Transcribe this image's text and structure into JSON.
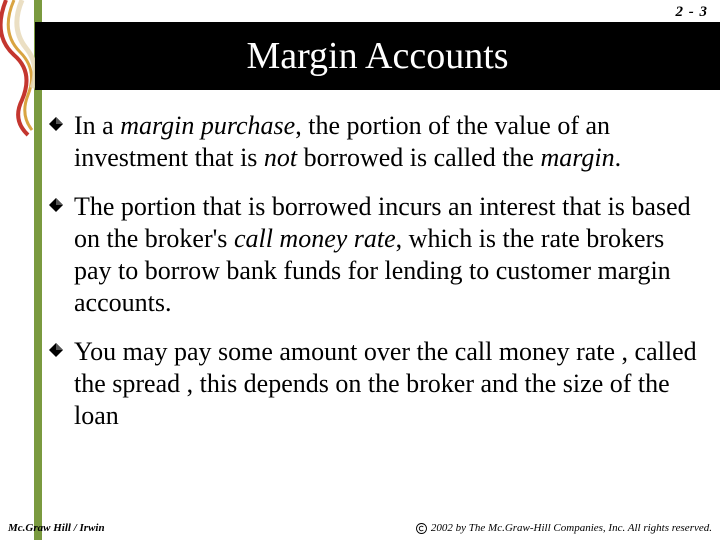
{
  "page_number": "2 - 3",
  "title": "Margin Accounts",
  "decoration": {
    "bar_color": "#7a9a3f",
    "swirl_colors": [
      "#d9a441",
      "#c4362f",
      "#e8d9b8"
    ]
  },
  "bullets": [
    {
      "segments": [
        {
          "t": "In a ",
          "i": false
        },
        {
          "t": "margin purchase",
          "i": true
        },
        {
          "t": ", the portion of the value of an investment that is ",
          "i": false
        },
        {
          "t": "not",
          "i": true
        },
        {
          "t": " borrowed is called the ",
          "i": false
        },
        {
          "t": "margin",
          "i": true
        },
        {
          "t": ".",
          "i": false
        }
      ]
    },
    {
      "segments": [
        {
          "t": "The portion that is borrowed incurs an interest that is based on the broker's ",
          "i": false
        },
        {
          "t": "call money rate",
          "i": true
        },
        {
          "t": ", which is the rate brokers pay to borrow bank funds for lending to customer margin accounts.",
          "i": false
        }
      ]
    },
    {
      "segments": [
        {
          "t": "You may pay some amount over the call money rate , called the spread , this depends on the broker and the size of the loan",
          "i": false
        }
      ]
    }
  ],
  "footer_left": "Mc.Graw Hill / Irwin",
  "footer_right": "2002 by The Mc.Graw-Hill Companies, Inc. All rights reserved.",
  "colors": {
    "title_bg": "#000000",
    "title_fg": "#ffffff",
    "text": "#000000",
    "bullet_fill": "#000000"
  }
}
